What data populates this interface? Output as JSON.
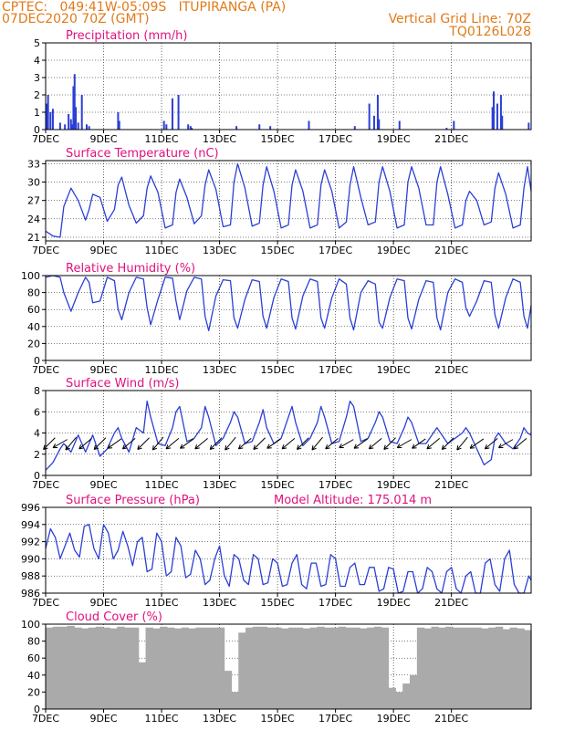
{
  "header": {
    "line1": "CPTEC:   049:41W-05:09S   ITUPIRANGA (PA)",
    "line2": "07DEC2020 70Z (GMT)",
    "grid_line": "Vertical Grid Line: 70Z",
    "run_id": "TQ0126L028"
  },
  "x_ticks": [
    "7DEC",
    "9DEC",
    "11DEC",
    "13DEC",
    "15DEC",
    "17DEC",
    "19DEC",
    "21DEC"
  ],
  "colors": {
    "line": "#2b3fd6",
    "bar": "#2b3fd6",
    "cloud": "#aaaaaa",
    "title": "#e0117f",
    "header": "#e07b1a",
    "axis": "#000000",
    "wind_arrow": "#000000"
  },
  "chart_data": [
    {
      "id": "precip",
      "type": "bar",
      "title": "Precipitation (mm/h)",
      "ylim": [
        0,
        5
      ],
      "yticks": [
        0,
        1,
        2,
        3,
        4,
        5
      ],
      "x_hours": [
        1,
        2,
        4,
        6,
        12,
        16,
        19,
        21,
        22,
        23,
        24,
        25,
        27,
        30,
        34,
        36,
        60,
        61,
        98,
        100,
        105,
        110,
        118,
        120,
        121,
        158,
        177,
        186,
        218,
        256,
        268,
        272,
        275,
        276,
        293,
        332,
        338,
        370,
        371,
        374,
        377,
        378,
        400
      ],
      "values": [
        1.5,
        2.0,
        1.0,
        1.2,
        0.4,
        0.3,
        0.9,
        0.6,
        0.3,
        2.5,
        3.2,
        1.3,
        0.4,
        2.0,
        0.3,
        0.2,
        1.0,
        0.5,
        0.5,
        0.3,
        1.8,
        2.0,
        0.3,
        0.2,
        0.1,
        0.2,
        0.3,
        0.2,
        0.5,
        0.2,
        1.5,
        0.8,
        2.0,
        0.6,
        0.5,
        0.1,
        0.5,
        1.3,
        2.2,
        1.5,
        2.0,
        0.8,
        0.4
      ]
    },
    {
      "id": "temp",
      "type": "line",
      "title": "Surface Temperature (nC)",
      "ylim": [
        20.4,
        33.5
      ],
      "yticks": [
        21,
        24,
        27,
        30,
        33
      ],
      "x_hours": [
        0,
        6,
        12,
        15,
        21,
        27,
        33,
        36,
        39,
        45,
        51,
        57,
        60,
        63,
        69,
        75,
        81,
        84,
        87,
        93,
        99,
        105,
        108,
        111,
        117,
        123,
        129,
        132,
        135,
        141,
        147,
        153,
        156,
        159,
        165,
        171,
        177,
        180,
        183,
        189,
        195,
        201,
        204,
        207,
        213,
        219,
        225,
        228,
        231,
        237,
        243,
        249,
        252,
        255,
        261,
        267,
        273,
        276,
        279,
        285,
        291,
        297,
        300,
        303,
        309,
        315,
        321,
        324,
        327,
        333,
        339,
        345,
        348,
        351,
        357,
        363,
        369,
        372,
        375,
        381,
        387,
        393,
        396,
        399,
        402
      ],
      "values": [
        22.0,
        21.2,
        21.0,
        26.0,
        29.0,
        27.0,
        23.8,
        25.5,
        28.0,
        27.5,
        23.6,
        25.5,
        29.5,
        30.8,
        26.2,
        23.3,
        24.5,
        29.0,
        31.0,
        28.3,
        22.5,
        23.0,
        28.3,
        30.5,
        27.5,
        23.2,
        24.5,
        29.5,
        32.0,
        28.8,
        22.7,
        23.0,
        30.0,
        33.0,
        29.0,
        22.8,
        23.3,
        29.5,
        32.5,
        28.5,
        22.5,
        23.0,
        29.5,
        32.0,
        28.5,
        22.5,
        23.0,
        29.5,
        32.0,
        28.5,
        22.5,
        23.5,
        29.5,
        32.5,
        27.5,
        23.0,
        23.5,
        30.0,
        32.5,
        28.5,
        22.5,
        23.0,
        30.0,
        32.5,
        29.0,
        23.0,
        23.0,
        30.0,
        32.5,
        28.0,
        22.5,
        23.0,
        27.0,
        28.5,
        27.0,
        23.0,
        23.5,
        29.0,
        31.5,
        28.0,
        22.5,
        23.0,
        29.0,
        32.5,
        28.5
      ]
    },
    {
      "id": "rh",
      "type": "line",
      "title": "Relative Humidity (%)",
      "ylim": [
        0,
        100
      ],
      "yticks": [
        0,
        20,
        40,
        60,
        80,
        100
      ],
      "x_hours": [
        0,
        6,
        12,
        15,
        21,
        27,
        33,
        36,
        39,
        45,
        51,
        57,
        60,
        63,
        69,
        75,
        81,
        84,
        87,
        93,
        99,
        105,
        108,
        111,
        117,
        123,
        129,
        132,
        135,
        141,
        147,
        153,
        156,
        159,
        165,
        171,
        177,
        180,
        183,
        189,
        195,
        201,
        204,
        207,
        213,
        219,
        225,
        228,
        231,
        237,
        243,
        249,
        252,
        255,
        261,
        267,
        273,
        276,
        279,
        285,
        291,
        297,
        300,
        303,
        309,
        315,
        321,
        324,
        327,
        333,
        339,
        345,
        348,
        351,
        357,
        363,
        369,
        372,
        375,
        381,
        387,
        393,
        396,
        399,
        402
      ],
      "values": [
        98,
        100,
        98,
        80,
        58,
        80,
        98,
        92,
        68,
        70,
        98,
        94,
        60,
        48,
        80,
        98,
        96,
        62,
        42,
        72,
        98,
        97,
        70,
        48,
        82,
        98,
        96,
        52,
        35,
        76,
        95,
        94,
        50,
        38,
        72,
        95,
        93,
        52,
        38,
        74,
        96,
        93,
        50,
        37,
        76,
        96,
        93,
        50,
        38,
        74,
        96,
        90,
        50,
        36,
        80,
        94,
        90,
        45,
        38,
        74,
        96,
        94,
        50,
        37,
        72,
        94,
        92,
        50,
        36,
        80,
        96,
        92,
        62,
        52,
        70,
        94,
        92,
        54,
        38,
        74,
        96,
        92,
        52,
        38,
        65
      ]
    },
    {
      "id": "wind",
      "type": "line",
      "title": "Surface Wind (m/s)",
      "ylim": [
        0,
        8
      ],
      "yticks": [
        0,
        2,
        4,
        6,
        8
      ],
      "x_hours": [
        0,
        6,
        12,
        15,
        21,
        27,
        33,
        36,
        39,
        45,
        51,
        57,
        60,
        63,
        69,
        75,
        81,
        84,
        87,
        93,
        99,
        105,
        108,
        111,
        117,
        123,
        129,
        132,
        135,
        141,
        147,
        153,
        156,
        159,
        165,
        171,
        177,
        180,
        183,
        189,
        195,
        201,
        204,
        207,
        213,
        219,
        225,
        228,
        231,
        237,
        243,
        249,
        252,
        255,
        261,
        267,
        273,
        276,
        279,
        285,
        291,
        297,
        300,
        303,
        309,
        315,
        321,
        324,
        327,
        333,
        339,
        345,
        348,
        351,
        357,
        363,
        369,
        372,
        375,
        381,
        387,
        393,
        396,
        399,
        402
      ],
      "values": [
        0.5,
        1.2,
        2.5,
        3.0,
        2.2,
        3.8,
        2.2,
        3.0,
        3.8,
        1.8,
        2.5,
        4.0,
        4.5,
        3.5,
        2.2,
        4.5,
        4.0,
        7.0,
        5.5,
        3.0,
        2.8,
        4.5,
        6.0,
        6.5,
        3.2,
        3.5,
        4.5,
        6.5,
        5.5,
        2.8,
        3.5,
        5.0,
        6.0,
        5.5,
        3.0,
        3.2,
        5.0,
        6.2,
        4.5,
        3.0,
        3.5,
        5.5,
        6.5,
        5.0,
        2.8,
        3.5,
        5.0,
        6.5,
        5.5,
        3.0,
        3.2,
        5.5,
        7.0,
        6.5,
        3.2,
        3.5,
        5.0,
        6.0,
        5.5,
        3.2,
        3.0,
        4.5,
        5.5,
        5.0,
        3.0,
        3.0,
        4.0,
        4.5,
        4.0,
        3.0,
        3.5,
        4.0,
        4.5,
        4.0,
        2.5,
        1.0,
        1.5,
        3.5,
        4.0,
        3.0,
        2.5,
        3.5,
        4.5,
        4.0,
        3.8
      ],
      "arrows_hours": [
        3,
        12,
        21,
        33,
        45,
        57,
        69,
        81,
        93,
        105,
        117,
        129,
        141,
        153,
        165,
        177,
        189,
        201,
        213,
        225,
        237,
        249,
        261,
        273,
        285,
        297,
        309,
        321,
        333,
        345,
        357,
        369,
        381,
        393
      ],
      "arrow_dir_deg": [
        45,
        30,
        50,
        40,
        45,
        35,
        40,
        45,
        50,
        40,
        35,
        40,
        45,
        50,
        40,
        45,
        35,
        40,
        45,
        50,
        40,
        30,
        35,
        40,
        45,
        30,
        35,
        40,
        45,
        50,
        35,
        40,
        30,
        40
      ]
    },
    {
      "id": "pressure",
      "type": "line",
      "title": "Surface Pressure (hPa)",
      "annotation": "Model Altitude: 175.014 m",
      "ylim": [
        986,
        996
      ],
      "yticks": [
        986,
        988,
        990,
        992,
        994,
        996
      ],
      "x_hours": [
        0,
        4,
        8,
        12,
        16,
        20,
        24,
        28,
        32,
        36,
        40,
        44,
        48,
        52,
        56,
        60,
        64,
        68,
        72,
        76,
        80,
        84,
        88,
        92,
        96,
        100,
        104,
        108,
        112,
        116,
        120,
        124,
        128,
        132,
        136,
        140,
        144,
        148,
        152,
        156,
        160,
        164,
        168,
        172,
        176,
        180,
        184,
        188,
        192,
        196,
        200,
        204,
        208,
        212,
        216,
        220,
        224,
        228,
        232,
        236,
        240,
        244,
        248,
        252,
        256,
        260,
        264,
        268,
        272,
        276,
        280,
        284,
        288,
        292,
        296,
        300,
        304,
        308,
        312,
        316,
        320,
        324,
        328,
        332,
        336,
        340,
        344,
        348,
        352,
        356,
        360,
        364,
        368,
        372,
        376,
        380,
        384,
        388,
        392,
        396,
        400,
        402
      ],
      "values": [
        991.2,
        993.5,
        992.5,
        990.0,
        991.5,
        993.0,
        991.0,
        990.2,
        993.8,
        994.0,
        991.2,
        990.0,
        994.0,
        993.0,
        990.0,
        991.0,
        993.2,
        991.5,
        989.2,
        992.0,
        992.5,
        988.5,
        988.8,
        993.0,
        992.0,
        988.0,
        988.5,
        992.5,
        991.5,
        987.8,
        988.2,
        991.0,
        990.0,
        987.0,
        987.5,
        990.0,
        991.5,
        988.0,
        986.8,
        990.5,
        990.0,
        987.5,
        987.0,
        990.5,
        990.0,
        987.0,
        987.2,
        990.0,
        989.5,
        986.8,
        987.0,
        989.5,
        990.5,
        987.0,
        986.5,
        989.5,
        989.5,
        986.8,
        987.0,
        990.5,
        990.0,
        986.8,
        986.8,
        989.0,
        989.5,
        987.0,
        987.0,
        989.0,
        989.0,
        986.2,
        986.5,
        989.0,
        988.8,
        986.0,
        986.2,
        988.5,
        988.5,
        986.0,
        986.5,
        989.0,
        988.5,
        986.5,
        986.0,
        988.5,
        989.0,
        986.5,
        986.0,
        988.0,
        988.5,
        986.0,
        986.0,
        989.5,
        990.0,
        987.0,
        986.2,
        990.0,
        991.0,
        987.0,
        986.0,
        986.0,
        988.0,
        987.5
      ]
    },
    {
      "id": "cloud",
      "type": "bar",
      "title": "Cloud Cover (%)",
      "ylim": [
        0,
        100
      ],
      "yticks": [
        0,
        20,
        40,
        60,
        80,
        100
      ],
      "x_hours": [
        0,
        6,
        12,
        18,
        24,
        30,
        36,
        42,
        48,
        54,
        60,
        66,
        72,
        78,
        84,
        90,
        96,
        102,
        108,
        114,
        120,
        126,
        132,
        138,
        144,
        150,
        156,
        162,
        168,
        174,
        180,
        186,
        192,
        198,
        204,
        210,
        216,
        222,
        228,
        234,
        240,
        246,
        252,
        258,
        264,
        270,
        276,
        282,
        288,
        294,
        300,
        306,
        312,
        318,
        324,
        330,
        336,
        342,
        348,
        354,
        360,
        366,
        372,
        378,
        384,
        390,
        396,
        402
      ],
      "values": [
        96,
        97,
        97,
        98,
        96,
        95,
        96,
        97,
        96,
        95,
        97,
        96,
        96,
        55,
        96,
        95,
        97,
        96,
        95,
        96,
        95,
        96,
        96,
        96,
        96,
        45,
        20,
        90,
        96,
        97,
        97,
        96,
        96,
        95,
        96,
        96,
        95,
        96,
        97,
        96,
        96,
        97,
        96,
        96,
        95,
        96,
        97,
        96,
        25,
        20,
        30,
        40,
        96,
        95,
        97,
        96,
        97,
        96,
        96,
        96,
        96,
        95,
        96,
        97,
        94,
        96,
        95,
        93
      ]
    }
  ]
}
